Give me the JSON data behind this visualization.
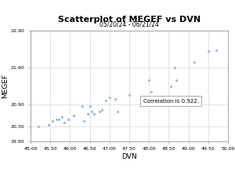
{
  "title": "Scatterplot of MEGEF vs DVN",
  "subtitle": "05/20/24 - 06/21/24",
  "xlabel": "DVN",
  "ylabel": "MEGEF",
  "xlim": [
    45.0,
    50.0
  ],
  "ylim": [
    19.9,
    22.9
  ],
  "xticks": [
    45.0,
    45.5,
    46.0,
    46.5,
    47.0,
    47.5,
    48.0,
    48.5,
    49.0,
    49.5,
    50.0
  ],
  "yticks": [
    19.9,
    20.3,
    20.9,
    21.9,
    22.9
  ],
  "annotation": "Correlation is 0.922.",
  "scatter_color": "#9ab7d8",
  "background_color": "#ffffff",
  "plot_bg_color": "#ffffff",
  "border_color": "#aaaaaa",
  "x": [
    45.2,
    45.45,
    45.55,
    45.65,
    45.72,
    45.8,
    45.85,
    45.95,
    46.1,
    46.3,
    46.35,
    46.45,
    46.5,
    46.55,
    46.6,
    46.75,
    46.8,
    46.9,
    47.0,
    47.15,
    47.2,
    47.5,
    47.8,
    48.0,
    48.05,
    48.55,
    48.65,
    48.7,
    49.15,
    49.5,
    49.7
  ],
  "y": [
    20.3,
    20.35,
    20.45,
    20.5,
    20.5,
    20.55,
    20.4,
    20.5,
    20.6,
    20.85,
    20.45,
    20.65,
    20.85,
    20.7,
    20.65,
    20.7,
    20.75,
    21.0,
    21.1,
    21.05,
    20.7,
    21.15,
    21.12,
    21.55,
    21.25,
    21.4,
    21.9,
    21.55,
    22.05,
    22.35,
    22.38
  ]
}
